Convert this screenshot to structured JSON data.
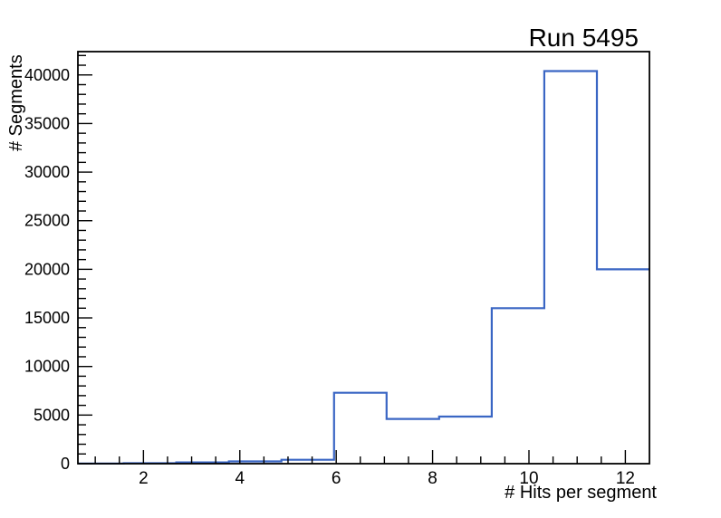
{
  "chart_data": {
    "type": "bar",
    "subtype": "step-histogram",
    "title": "Run 5495",
    "xlabel": "# Hits per segment",
    "ylabel": "# Segments",
    "bin_edges": [
      0.5,
      1.591,
      2.682,
      3.773,
      4.864,
      5.955,
      7.045,
      8.136,
      9.227,
      10.318,
      11.409,
      12.5
    ],
    "values": [
      10,
      50,
      130,
      230,
      400,
      7300,
      4600,
      4850,
      16000,
      40400,
      20000
    ],
    "xlim": [
      0.64,
      12.5
    ],
    "ylim": [
      0,
      42400
    ],
    "x_major_ticks": [
      2,
      4,
      6,
      8,
      10,
      12
    ],
    "x_minor_step": 0.5,
    "y_major_ticks": [
      0,
      5000,
      10000,
      15000,
      20000,
      25000,
      30000,
      35000,
      40000
    ],
    "y_minor_step": 1000,
    "grid": false,
    "legend": null,
    "line_color": "#3a66c4",
    "axis_color": "#000000",
    "background_color": "#ffffff"
  }
}
